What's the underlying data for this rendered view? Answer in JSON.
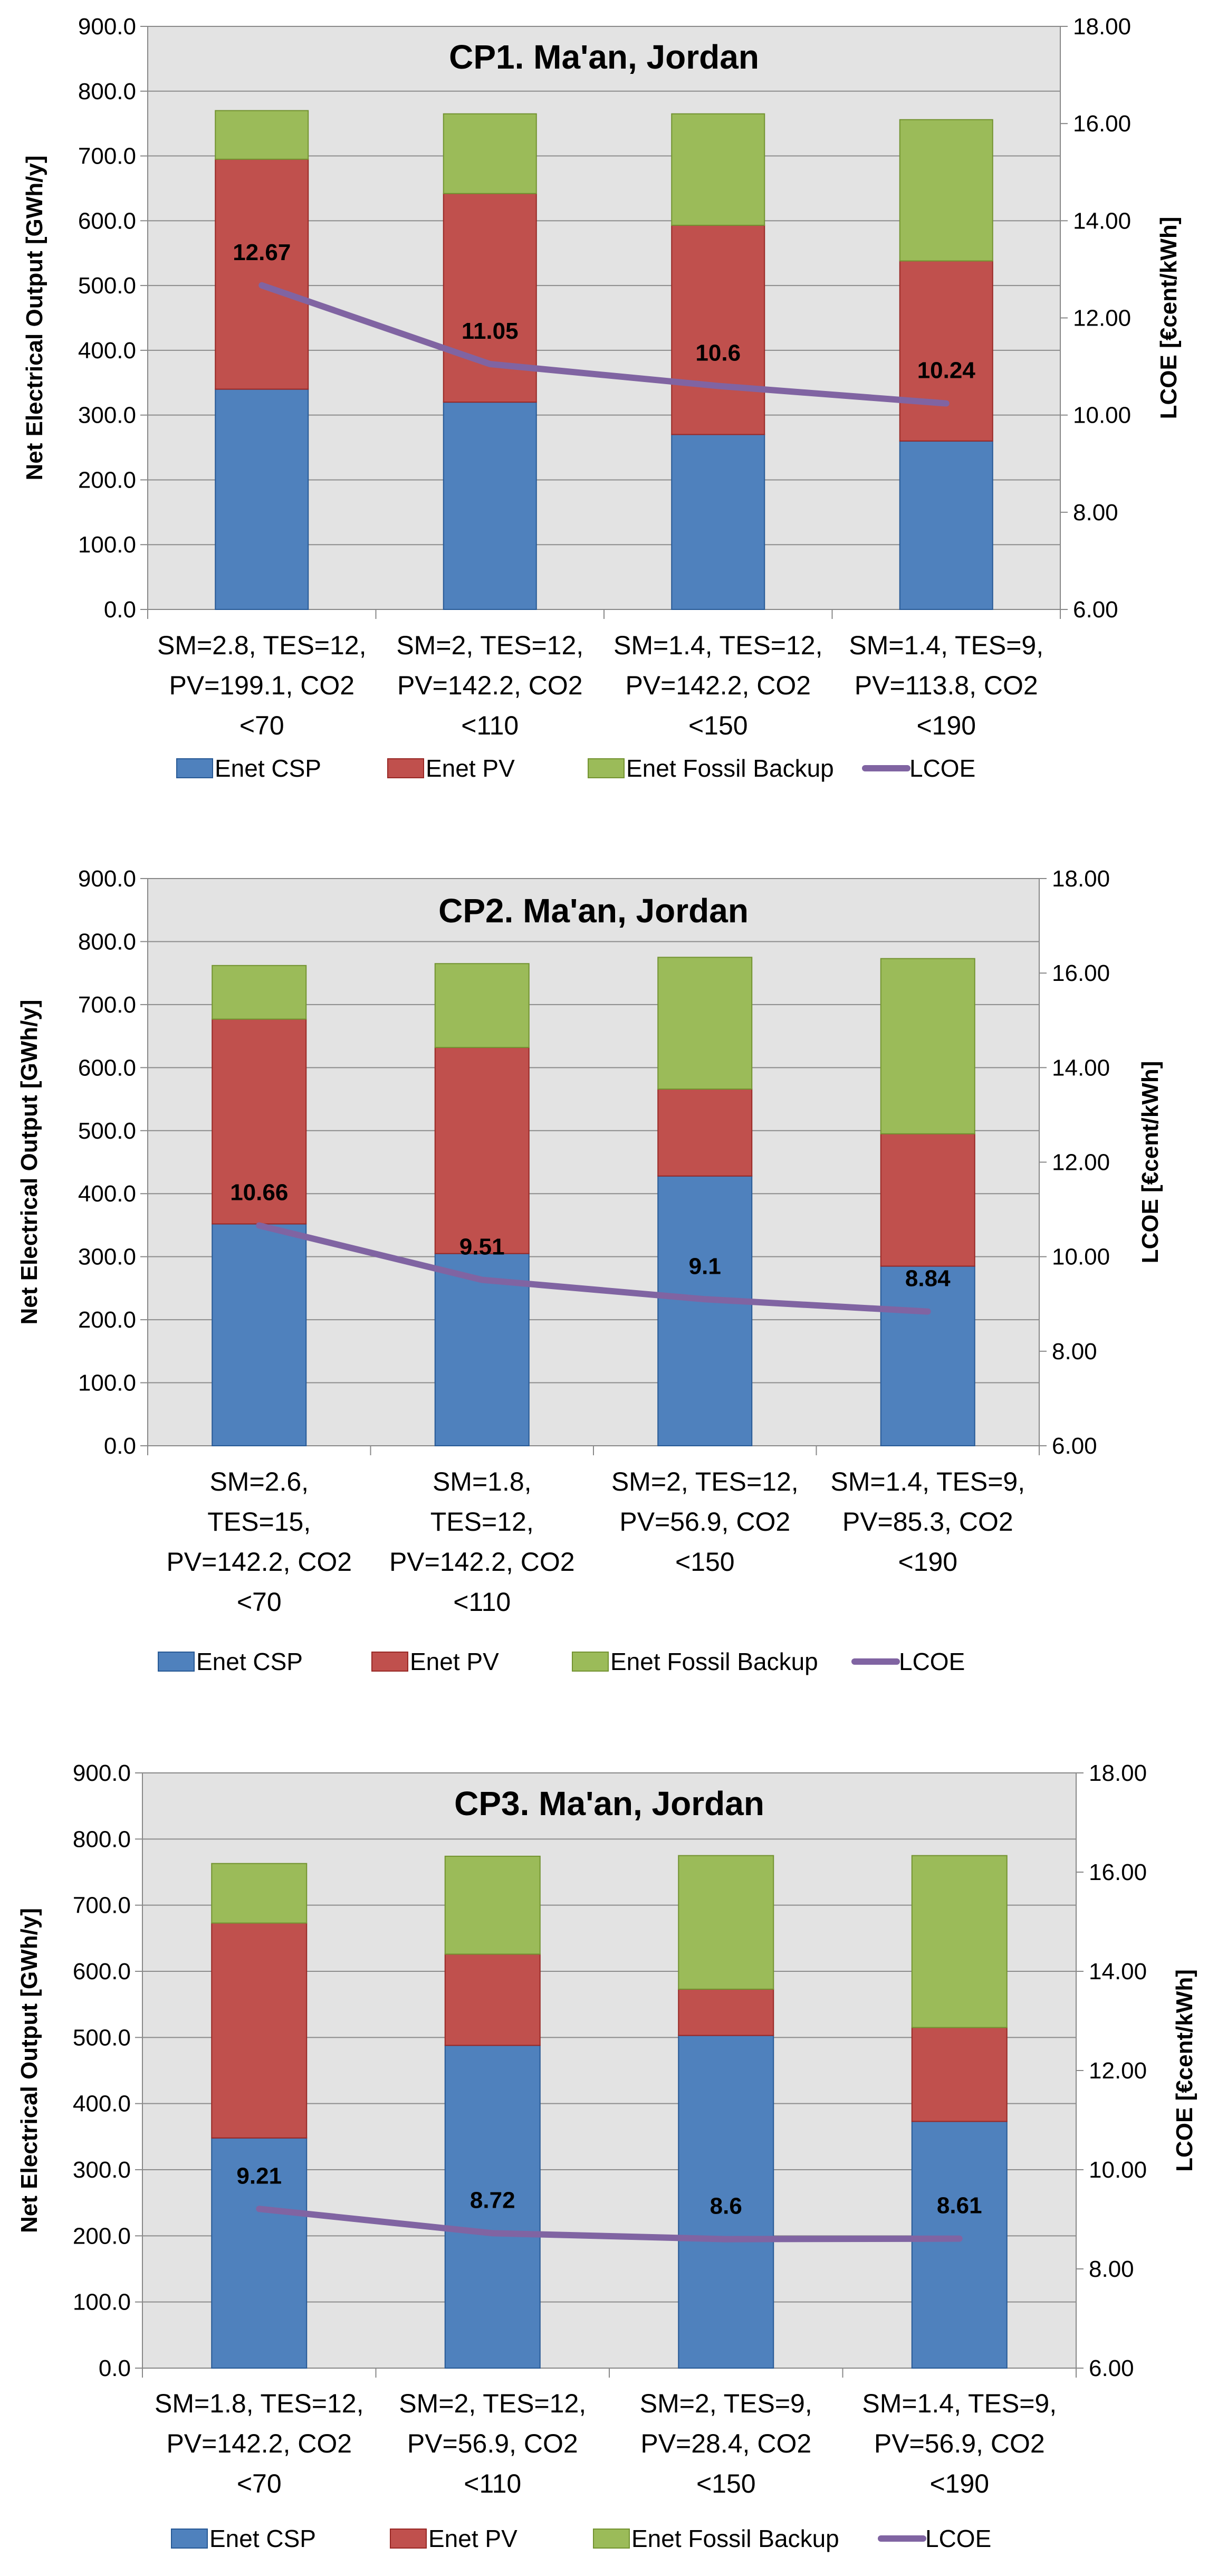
{
  "chart_data": [
    {
      "type": "bar",
      "stacked": true,
      "title": "CP1. Ma'an, Jordan",
      "ylabel": "Net Electrical Output [GWh/y]",
      "y2label": "LCOE [€cent/kWh]",
      "ylim": [
        0,
        900
      ],
      "y2lim": [
        6,
        18
      ],
      "yticks": [
        "0.0",
        "100.0",
        "200.0",
        "300.0",
        "400.0",
        "500.0",
        "600.0",
        "700.0",
        "800.0",
        "900.0"
      ],
      "y2ticks": [
        "6.00",
        "8.00",
        "10.00",
        "12.00",
        "14.00",
        "16.00",
        "18.00"
      ],
      "categories": [
        [
          "SM=2.8, TES=12,",
          "PV=199.1, CO2",
          "<70"
        ],
        [
          "SM=2, TES=12,",
          "PV=142.2, CO2",
          "<110"
        ],
        [
          "SM=1.4, TES=12,",
          "PV=142.2, CO2",
          "<150"
        ],
        [
          "SM=1.4, TES=9,",
          "PV=113.8, CO2",
          "<190"
        ]
      ],
      "series": [
        {
          "name": "Enet CSP",
          "color": "#4f81bd",
          "values": [
            340,
            320,
            270,
            260
          ]
        },
        {
          "name": "Enet PV",
          "color": "#c0504d",
          "values": [
            355,
            322,
            323,
            278
          ]
        },
        {
          "name": "Enet Fossil Backup",
          "color": "#9bbb59",
          "values": [
            75,
            123,
            172,
            218
          ]
        }
      ],
      "line": {
        "name": "LCOE",
        "color": "#8064a2",
        "axis": "right",
        "values": [
          12.67,
          11.05,
          10.6,
          10.24
        ],
        "labels": [
          "12.67",
          "11.05",
          "10.6",
          "10.24"
        ]
      }
    },
    {
      "type": "bar",
      "stacked": true,
      "title": "CP2. Ma'an, Jordan",
      "ylabel": "Net Electrical Output [GWh/y]",
      "y2label": "LCOE [€cent/kWh]",
      "ylim": [
        0,
        900
      ],
      "y2lim": [
        6,
        18
      ],
      "yticks": [
        "0.0",
        "100.0",
        "200.0",
        "300.0",
        "400.0",
        "500.0",
        "600.0",
        "700.0",
        "800.0",
        "900.0"
      ],
      "y2ticks": [
        "6.00",
        "8.00",
        "10.00",
        "12.00",
        "14.00",
        "16.00",
        "18.00"
      ],
      "categories": [
        [
          "SM=2.6,",
          "TES=15,",
          "PV=142.2, CO2",
          "<70"
        ],
        [
          "SM=1.8,",
          "TES=12,",
          "PV=142.2, CO2",
          "<110"
        ],
        [
          "SM=2, TES=12,",
          "PV=56.9, CO2",
          "<150"
        ],
        [
          "SM=1.4, TES=9,",
          "PV=85.3, CO2",
          "<190"
        ]
      ],
      "series": [
        {
          "name": "Enet CSP",
          "color": "#4f81bd",
          "values": [
            352,
            305,
            428,
            285
          ]
        },
        {
          "name": "Enet PV",
          "color": "#c0504d",
          "values": [
            325,
            327,
            138,
            210
          ]
        },
        {
          "name": "Enet Fossil Backup",
          "color": "#9bbb59",
          "values": [
            85,
            133,
            209,
            278
          ]
        }
      ],
      "line": {
        "name": "LCOE",
        "color": "#8064a2",
        "axis": "right",
        "values": [
          10.66,
          9.51,
          9.1,
          8.84
        ],
        "labels": [
          "10.66",
          "9.51",
          "9.1",
          "8.84"
        ]
      }
    },
    {
      "type": "bar",
      "stacked": true,
      "title": "CP3. Ma'an, Jordan",
      "ylabel": "Net Electrical Output [GWh/y]",
      "y2label": "LCOE [€cent/kWh]",
      "ylim": [
        0,
        900
      ],
      "y2lim": [
        6,
        18
      ],
      "yticks": [
        "0.0",
        "100.0",
        "200.0",
        "300.0",
        "400.0",
        "500.0",
        "600.0",
        "700.0",
        "800.0",
        "900.0"
      ],
      "y2ticks": [
        "6.00",
        "8.00",
        "10.00",
        "12.00",
        "14.00",
        "16.00",
        "18.00"
      ],
      "categories": [
        [
          "SM=1.8, TES=12,",
          "PV=142.2, CO2",
          "<70"
        ],
        [
          "SM=2, TES=12,",
          "PV=56.9, CO2",
          "<110"
        ],
        [
          "SM=2, TES=9,",
          "PV=28.4, CO2",
          "<150"
        ],
        [
          "SM=1.4, TES=9,",
          "PV=56.9, CO2",
          "<190"
        ]
      ],
      "series": [
        {
          "name": "Enet CSP",
          "color": "#4f81bd",
          "values": [
            348,
            488,
            503,
            373
          ]
        },
        {
          "name": "Enet PV",
          "color": "#c0504d",
          "values": [
            325,
            138,
            70,
            142
          ]
        },
        {
          "name": "Enet Fossil Backup",
          "color": "#9bbb59",
          "values": [
            90,
            148,
            202,
            260
          ]
        }
      ],
      "line": {
        "name": "LCOE",
        "color": "#8064a2",
        "axis": "right",
        "values": [
          9.21,
          8.72,
          8.6,
          8.61
        ],
        "labels": [
          "9.21",
          "8.72",
          "8.6",
          "8.61"
        ]
      }
    }
  ]
}
